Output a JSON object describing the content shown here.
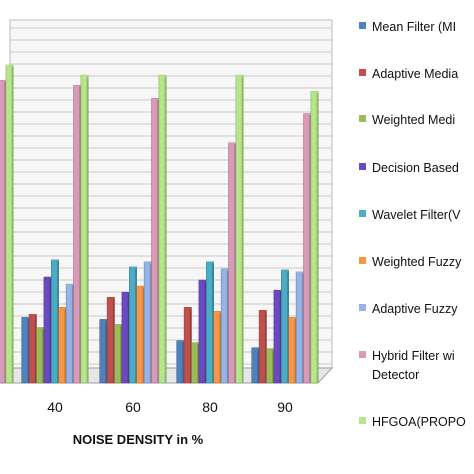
{
  "chart_data": {
    "type": "bar",
    "xlabel": "NOISE DENSITY in %",
    "ylabel": "",
    "title": "",
    "categories": [
      "",
      "40",
      "60",
      "80",
      "90"
    ],
    "ylim": [
      0,
      32
    ],
    "grid": true,
    "legend": "right",
    "series": [
      {
        "name": "Mean Filter (MF)",
        "color": "#4f81bd",
        "values": [
          null,
          6.5,
          6.3,
          4.2,
          3.5
        ]
      },
      {
        "name": "Adaptive Median Filter",
        "color": "#c0504d",
        "values": [
          null,
          6.8,
          8.5,
          7.5,
          7.2
        ]
      },
      {
        "name": "Weighted Median Filter",
        "color": "#9bbb59",
        "values": [
          null,
          5.5,
          5.8,
          4.0,
          3.4
        ]
      },
      {
        "name": "Decision Based Filter",
        "color": "#6b49c0",
        "values": [
          null,
          10.5,
          9.0,
          10.2,
          9.2
        ]
      },
      {
        "name": "Wavelet Filter (WF)",
        "color": "#4bacc6",
        "values": [
          null,
          12.2,
          11.5,
          12.0,
          11.2
        ]
      },
      {
        "name": "Weighted Fuzzy Filter",
        "color": "#f79646",
        "values": [
          null,
          7.5,
          9.6,
          7.1,
          6.5
        ]
      },
      {
        "name": "Adaptive Fuzzy Filter",
        "color": "#95b3e4",
        "values": [
          null,
          9.8,
          12.0,
          11.3,
          11.0
        ]
      },
      {
        "name": "Hybrid Filter with Detector",
        "color": "#d99ab8",
        "values": [
          30.0,
          29.5,
          28.2,
          23.8,
          26.7
        ]
      },
      {
        "name": "HFGOA(PROPOSED)",
        "color": "#b6e58a",
        "values": [
          31.5,
          30.5,
          30.5,
          30.5,
          28.9
        ]
      }
    ]
  },
  "legend_labels": [
    "Mean Filter (MI",
    "Adaptive Media",
    "Weighted Medi",
    "Decision Based",
    "Wavelet Filter(V",
    "Weighted Fuzzy",
    "Adaptive Fuzzy",
    "Hybrid Filter wi",
    "Detector",
    "HFGOA(PROPO"
  ]
}
